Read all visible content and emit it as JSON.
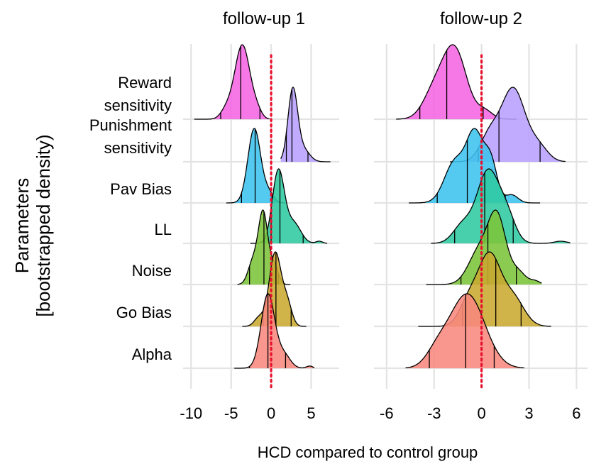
{
  "chart_data": {
    "type": "ridgeline",
    "xlabel": "HCD compared to control group",
    "ylabel_lines": [
      "Parameters",
      "[bootstrapped density)"
    ],
    "categories": [
      "Reward sensitivity",
      "Punishment sensitivity",
      "Pav Bias",
      "LL",
      "Noise",
      "Go Bias",
      "Alpha"
    ],
    "category_label_lines": [
      [
        "Reward",
        "sensitivity"
      ],
      [
        "Punishment",
        "sensitivity"
      ],
      [
        "Pav Bias"
      ],
      [
        "LL"
      ],
      [
        "Noise"
      ],
      [
        "Go Bias"
      ],
      [
        "Alpha"
      ]
    ],
    "colors": {
      "Reward sensitivity": "#F564E3",
      "Punishment sensitivity": "#B79FFF",
      "Pav Bias": "#3EC3EE",
      "LL": "#2FC9A0",
      "Noise": "#7CC43A",
      "Go Bias": "#C9A830",
      "Alpha": "#F8877D",
      "reference_line": "#E8112D"
    },
    "reference_line_x": 0,
    "grid": true,
    "panels": [
      {
        "title": "follow-up 1",
        "xlim": [
          -11,
          8.5
        ],
        "xticks": [
          -10,
          -5,
          0,
          5
        ],
        "xtick_labels": [
          "-10",
          "-5",
          "0",
          "5"
        ],
        "series": [
          {
            "name": "Reward sensitivity",
            "range": [
              -9.6,
              -0.2
            ],
            "quantiles": [
              -6.3,
              -3.8,
              -1.4
            ],
            "peaks": [
              {
                "x": -3.6,
                "h": 1.0,
                "w": 0.95
              },
              {
                "x": -5.6,
                "h": 0.12,
                "w": 0.7
              },
              {
                "x": -1.8,
                "h": 0.1,
                "w": 0.6
              }
            ]
          },
          {
            "name": "Punishment sensitivity",
            "range": [
              1.2,
              7.4
            ],
            "quantiles": [
              1.9,
              2.6,
              4.6
            ],
            "peaks": [
              {
                "x": 2.7,
                "h": 1.05,
                "w": 0.6
              },
              {
                "x": 4.0,
                "h": 0.18,
                "w": 0.8
              }
            ]
          },
          {
            "name": "Pav Bias",
            "range": [
              -5.6,
              1.8
            ],
            "quantiles": [
              -3.7,
              -2.0,
              0.1
            ],
            "peaks": [
              {
                "x": -2.1,
                "h": 0.95,
                "w": 0.8
              },
              {
                "x": -0.3,
                "h": 0.12,
                "w": 0.6
              }
            ]
          },
          {
            "name": "LL",
            "range": [
              -2.6,
              7.0
            ],
            "quantiles": [
              0.0,
              1.1,
              4.0
            ],
            "peaks": [
              {
                "x": 0.9,
                "h": 1.0,
                "w": 0.75
              },
              {
                "x": 2.8,
                "h": 0.28,
                "w": 0.9
              },
              {
                "x": 6.0,
                "h": 0.03,
                "w": 0.4
              }
            ]
          },
          {
            "name": "Noise",
            "range": [
              -4.2,
              2.4
            ],
            "quantiles": [
              -2.7,
              -0.9,
              0.9
            ],
            "peaks": [
              {
                "x": -1.0,
                "h": 1.0,
                "w": 0.6
              },
              {
                "x": -2.3,
                "h": 0.3,
                "w": 0.6
              },
              {
                "x": 0.4,
                "h": 0.25,
                "w": 0.5
              }
            ]
          },
          {
            "name": "Go Bias",
            "range": [
              -3.6,
              4.4
            ],
            "quantiles": [
              -1.0,
              0.6,
              2.5
            ],
            "peaks": [
              {
                "x": 0.5,
                "h": 1.0,
                "w": 0.75
              },
              {
                "x": 2.0,
                "h": 0.3,
                "w": 0.6
              },
              {
                "x": -1.5,
                "h": 0.12,
                "w": 0.6
              }
            ]
          },
          {
            "name": "Alpha",
            "range": [
              -4.6,
              5.4
            ],
            "quantiles": [
              -2.7,
              -0.4,
              1.8
            ],
            "peaks": [
              {
                "x": -0.4,
                "h": 1.0,
                "w": 0.85
              },
              {
                "x": 1.6,
                "h": 0.18,
                "w": 0.8
              },
              {
                "x": 4.8,
                "h": 0.03,
                "w": 0.4
              }
            ]
          }
        ]
      },
      {
        "title": "follow-up 2",
        "xlim": [
          -6.8,
          6.7
        ],
        "xticks": [
          -6,
          -3,
          0,
          3,
          6
        ],
        "xtick_labels": [
          "-6",
          "-3",
          "0",
          "3",
          "6"
        ],
        "series": [
          {
            "name": "Reward sensitivity",
            "range": [
              -5.4,
              2.2
            ],
            "quantiles": [
              -3.9,
              -2.2,
              0.1
            ],
            "peaks": [
              {
                "x": -1.7,
                "h": 1.0,
                "w": 0.75
              },
              {
                "x": -3.0,
                "h": 0.38,
                "w": 0.7
              },
              {
                "x": 0.2,
                "h": 0.12,
                "w": 0.5
              }
            ]
          },
          {
            "name": "Punishment sensitivity",
            "range": [
              -2.0,
              5.3
            ],
            "quantiles": [
              -0.2,
              1.1,
              3.7
            ],
            "peaks": [
              {
                "x": 2.0,
                "h": 1.0,
                "w": 0.75
              },
              {
                "x": 0.5,
                "h": 0.35,
                "w": 0.6
              },
              {
                "x": 3.6,
                "h": 0.2,
                "w": 0.6
              }
            ]
          },
          {
            "name": "Pav Bias",
            "range": [
              -4.6,
              3.7
            ],
            "quantiles": [
              -2.8,
              -0.9,
              1.5
            ],
            "peaks": [
              {
                "x": -0.4,
                "h": 1.0,
                "w": 0.55
              },
              {
                "x": -1.7,
                "h": 0.6,
                "w": 0.65
              },
              {
                "x": 0.6,
                "h": 0.55,
                "w": 0.4
              },
              {
                "x": 1.9,
                "h": 0.12,
                "w": 0.4
              }
            ]
          },
          {
            "name": "LL",
            "range": [
              -3.2,
              5.6
            ],
            "quantiles": [
              -1.7,
              0.2,
              2.0
            ],
            "peaks": [
              {
                "x": 0.4,
                "h": 1.0,
                "w": 0.7
              },
              {
                "x": 1.6,
                "h": 0.35,
                "w": 0.55
              },
              {
                "x": -1.2,
                "h": 0.25,
                "w": 0.6
              },
              {
                "x": 5.0,
                "h": 0.03,
                "w": 0.4
              }
            ]
          },
          {
            "name": "Noise",
            "range": [
              -3.5,
              3.8
            ],
            "quantiles": [
              -1.3,
              0.4,
              2.2
            ],
            "peaks": [
              {
                "x": 1.0,
                "h": 1.0,
                "w": 0.55
              },
              {
                "x": -0.1,
                "h": 0.55,
                "w": 0.7
              },
              {
                "x": 2.3,
                "h": 0.2,
                "w": 0.5
              },
              {
                "x": 3.4,
                "h": 0.05,
                "w": 0.3
              }
            ]
          },
          {
            "name": "Go Bias",
            "range": [
              -4.0,
              4.4
            ],
            "quantiles": [
              -1.2,
              0.9,
              2.5
            ],
            "peaks": [
              {
                "x": 0.5,
                "h": 1.0,
                "w": 0.7
              },
              {
                "x": -0.8,
                "h": 0.35,
                "w": 0.6
              },
              {
                "x": 2.0,
                "h": 0.4,
                "w": 0.7
              }
            ]
          },
          {
            "name": "Alpha",
            "range": [
              -4.8,
              2.7
            ],
            "quantiles": [
              -3.3,
              -1.0,
              0.8
            ],
            "peaks": [
              {
                "x": -0.9,
                "h": 1.0,
                "w": 1.1
              },
              {
                "x": -2.8,
                "h": 0.2,
                "w": 0.7
              }
            ]
          }
        ]
      }
    ]
  }
}
